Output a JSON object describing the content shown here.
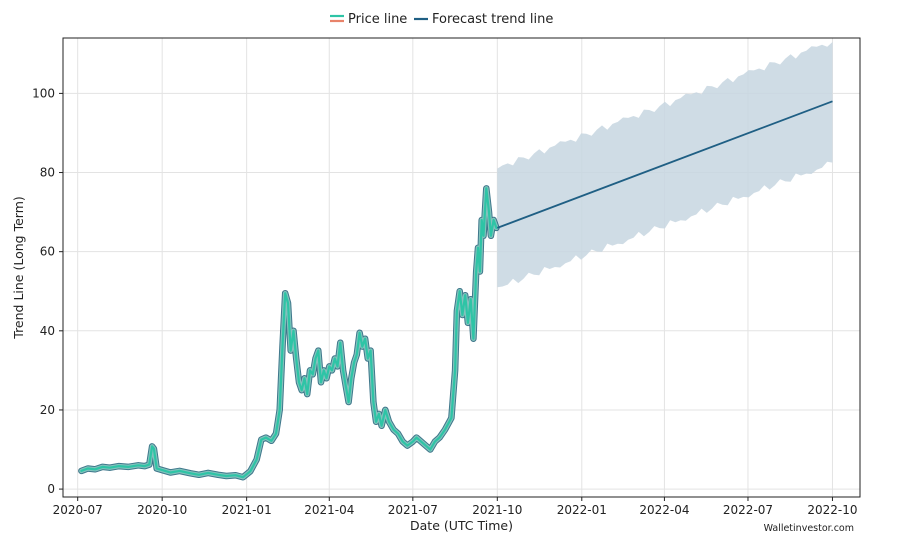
{
  "chart_data": {
    "type": "line",
    "title": "",
    "xlabel": "Date (UTC Time)",
    "ylabel": "Trend Line (Long Term)",
    "ylim": [
      -2,
      114
    ],
    "xlim": [
      "2020-06-15",
      "2022-10-31"
    ],
    "grid": true,
    "legend_position": "top-center",
    "x_tick_labels": [
      "2020-07",
      "2020-10",
      "2021-01",
      "2021-04",
      "2021-07",
      "2021-10",
      "2022-01",
      "2022-04",
      "2022-07",
      "2022-10"
    ],
    "x_tick_dates": [
      "2020-07-01",
      "2020-10-01",
      "2021-01-01",
      "2021-04-01",
      "2021-07-01",
      "2021-10-01",
      "2022-01-01",
      "2022-04-01",
      "2022-07-01",
      "2022-10-01"
    ],
    "y_ticks": [
      0,
      20,
      40,
      60,
      80,
      100
    ],
    "series": [
      {
        "name": "Price line",
        "color": "#2ec4a6",
        "outline_color": "#1d5f77",
        "points": [
          [
            "2020-07-05",
            4.6
          ],
          [
            "2020-07-12",
            5.2
          ],
          [
            "2020-07-20",
            5.0
          ],
          [
            "2020-07-28",
            5.6
          ],
          [
            "2020-08-05",
            5.4
          ],
          [
            "2020-08-15",
            5.8
          ],
          [
            "2020-08-25",
            5.6
          ],
          [
            "2020-09-05",
            6.0
          ],
          [
            "2020-09-12",
            5.8
          ],
          [
            "2020-09-17",
            6.2
          ],
          [
            "2020-09-20",
            10.8
          ],
          [
            "2020-09-22",
            10.2
          ],
          [
            "2020-09-25",
            5.2
          ],
          [
            "2020-10-01",
            4.8
          ],
          [
            "2020-10-10",
            4.2
          ],
          [
            "2020-10-20",
            4.6
          ],
          [
            "2020-11-01",
            4.0
          ],
          [
            "2020-11-10",
            3.6
          ],
          [
            "2020-11-20",
            4.1
          ],
          [
            "2020-12-01",
            3.6
          ],
          [
            "2020-12-10",
            3.3
          ],
          [
            "2020-12-20",
            3.5
          ],
          [
            "2020-12-28",
            3.0
          ],
          [
            "2021-01-05",
            4.5
          ],
          [
            "2021-01-12",
            7.5
          ],
          [
            "2021-01-17",
            12.5
          ],
          [
            "2021-01-22",
            13.0
          ],
          [
            "2021-01-28",
            12.2
          ],
          [
            "2021-02-02",
            14.0
          ],
          [
            "2021-02-06",
            20.0
          ],
          [
            "2021-02-09",
            36.0
          ],
          [
            "2021-02-12",
            49.5
          ],
          [
            "2021-02-15",
            47.0
          ],
          [
            "2021-02-18",
            35.0
          ],
          [
            "2021-02-21",
            40.0
          ],
          [
            "2021-02-24",
            33.0
          ],
          [
            "2021-02-27",
            27.0
          ],
          [
            "2021-03-02",
            25.0
          ],
          [
            "2021-03-05",
            28.0
          ],
          [
            "2021-03-08",
            24.0
          ],
          [
            "2021-03-11",
            30.0
          ],
          [
            "2021-03-14",
            29.0
          ],
          [
            "2021-03-17",
            33.0
          ],
          [
            "2021-03-20",
            35.0
          ],
          [
            "2021-03-23",
            27.0
          ],
          [
            "2021-03-26",
            30.0
          ],
          [
            "2021-03-29",
            28.0
          ],
          [
            "2021-04-01",
            31.0
          ],
          [
            "2021-04-04",
            30.0
          ],
          [
            "2021-04-07",
            33.0
          ],
          [
            "2021-04-10",
            31.0
          ],
          [
            "2021-04-13",
            37.0
          ],
          [
            "2021-04-16",
            30.0
          ],
          [
            "2021-04-19",
            26.0
          ],
          [
            "2021-04-22",
            22.0
          ],
          [
            "2021-04-25",
            28.0
          ],
          [
            "2021-04-28",
            32.0
          ],
          [
            "2021-05-01",
            34.0
          ],
          [
            "2021-05-04",
            39.5
          ],
          [
            "2021-05-07",
            36.0
          ],
          [
            "2021-05-10",
            38.0
          ],
          [
            "2021-05-13",
            33.0
          ],
          [
            "2021-05-16",
            35.0
          ],
          [
            "2021-05-19",
            22.0
          ],
          [
            "2021-05-22",
            17.0
          ],
          [
            "2021-05-25",
            19.0
          ],
          [
            "2021-05-28",
            16.0
          ],
          [
            "2021-06-01",
            20.0
          ],
          [
            "2021-06-05",
            17.0
          ],
          [
            "2021-06-10",
            15.0
          ],
          [
            "2021-06-15",
            14.0
          ],
          [
            "2021-06-20",
            12.0
          ],
          [
            "2021-06-25",
            11.0
          ],
          [
            "2021-07-01",
            12.0
          ],
          [
            "2021-07-05",
            13.0
          ],
          [
            "2021-07-10",
            12.0
          ],
          [
            "2021-07-15",
            11.0
          ],
          [
            "2021-07-20",
            10.0
          ],
          [
            "2021-07-25",
            12.0
          ],
          [
            "2021-07-30",
            13.0
          ],
          [
            "2021-08-05",
            15.0
          ],
          [
            "2021-08-12",
            18.0
          ],
          [
            "2021-08-16",
            30.0
          ],
          [
            "2021-08-18",
            45.0
          ],
          [
            "2021-08-21",
            50.0
          ],
          [
            "2021-08-24",
            44.0
          ],
          [
            "2021-08-27",
            49.0
          ],
          [
            "2021-08-30",
            42.0
          ],
          [
            "2021-09-02",
            48.0
          ],
          [
            "2021-09-05",
            38.0
          ],
          [
            "2021-09-08",
            55.0
          ],
          [
            "2021-09-10",
            61.0
          ],
          [
            "2021-09-12",
            55.0
          ],
          [
            "2021-09-14",
            68.0
          ],
          [
            "2021-09-16",
            64.0
          ],
          [
            "2021-09-19",
            76.0
          ],
          [
            "2021-09-22",
            70.0
          ],
          [
            "2021-09-24",
            64.0
          ],
          [
            "2021-09-27",
            68.0
          ],
          [
            "2021-09-30",
            66.0
          ]
        ]
      },
      {
        "name": "Forecast trend line",
        "color": "#1f5f84",
        "band_color": "#c7d6e0",
        "points": [
          [
            "2021-10-01",
            66.0
          ],
          [
            "2022-10-01",
            98.0
          ]
        ],
        "band_upper": [
          [
            "2021-10-01",
            81.0
          ],
          [
            "2022-10-01",
            113.0
          ]
        ],
        "band_lower": [
          [
            "2021-10-01",
            51.0
          ],
          [
            "2022-10-01",
            82.5
          ]
        ]
      }
    ]
  },
  "credit": "Walletinvestor.com"
}
